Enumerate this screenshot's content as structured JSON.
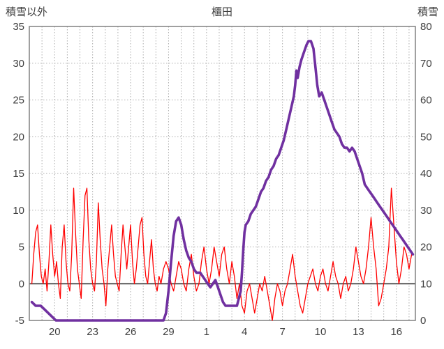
{
  "chart_data": {
    "type": "line",
    "title": "櫃田",
    "legend": "none",
    "grid": "dotted",
    "colors": {
      "red_series": "#ff0000",
      "purple_series": "#7030a0",
      "grid": "#ababab",
      "axis_text": "#404040",
      "zero_line": "#595959",
      "frame": "#808080",
      "background": "#ffffff"
    },
    "x_axis": {
      "min": 0,
      "max": 30.5,
      "ticks": [
        {
          "x": 2,
          "label": "20"
        },
        {
          "x": 5,
          "label": "23"
        },
        {
          "x": 8,
          "label": "26"
        },
        {
          "x": 11,
          "label": "29"
        },
        {
          "x": 14,
          "label": "1"
        },
        {
          "x": 17,
          "label": "4"
        },
        {
          "x": 20,
          "label": "7"
        },
        {
          "x": 23,
          "label": "10"
        },
        {
          "x": 26,
          "label": "13"
        },
        {
          "x": 29,
          "label": "16"
        }
      ]
    },
    "left_axis": {
      "title": "積雪以外",
      "min": -5,
      "max": 35,
      "ticks": [
        35,
        30,
        25,
        20,
        15,
        10,
        5,
        0,
        -5
      ]
    },
    "right_axis": {
      "title": "積雪",
      "min": 0,
      "max": 80,
      "ticks": [
        80,
        70,
        60,
        50,
        40,
        30,
        20,
        10,
        0
      ]
    },
    "series": [
      {
        "name": "積雪以外",
        "axis": "left",
        "color": "#ff0000",
        "width": 1.3,
        "points": [
          [
            0.2,
            0
          ],
          [
            0.35,
            4
          ],
          [
            0.5,
            7
          ],
          [
            0.65,
            8
          ],
          [
            0.8,
            4
          ],
          [
            0.95,
            1
          ],
          [
            1.1,
            0
          ],
          [
            1.25,
            2
          ],
          [
            1.4,
            -1
          ],
          [
            1.55,
            3
          ],
          [
            1.7,
            8
          ],
          [
            1.85,
            4
          ],
          [
            2.0,
            1
          ],
          [
            2.15,
            3
          ],
          [
            2.3,
            0
          ],
          [
            2.45,
            -2
          ],
          [
            2.6,
            5
          ],
          [
            2.75,
            8
          ],
          [
            2.9,
            3
          ],
          [
            3.05,
            0
          ],
          [
            3.2,
            -1
          ],
          [
            3.35,
            4
          ],
          [
            3.5,
            13
          ],
          [
            3.65,
            7
          ],
          [
            3.8,
            2
          ],
          [
            3.95,
            0
          ],
          [
            4.1,
            -2
          ],
          [
            4.25,
            6
          ],
          [
            4.4,
            12
          ],
          [
            4.55,
            13
          ],
          [
            4.7,
            6
          ],
          [
            4.85,
            2
          ],
          [
            5.0,
            0
          ],
          [
            5.15,
            -1
          ],
          [
            5.3,
            3
          ],
          [
            5.45,
            11
          ],
          [
            5.6,
            6
          ],
          [
            5.75,
            2
          ],
          [
            5.9,
            0
          ],
          [
            6.05,
            -3
          ],
          [
            6.2,
            2
          ],
          [
            6.35,
            5
          ],
          [
            6.5,
            8
          ],
          [
            6.65,
            4
          ],
          [
            6.8,
            1
          ],
          [
            6.95,
            0
          ],
          [
            7.1,
            -1
          ],
          [
            7.25,
            4
          ],
          [
            7.4,
            8
          ],
          [
            7.55,
            5
          ],
          [
            7.7,
            2
          ],
          [
            7.85,
            5
          ],
          [
            8.0,
            8
          ],
          [
            8.15,
            3
          ],
          [
            8.3,
            0
          ],
          [
            8.45,
            2
          ],
          [
            8.6,
            5
          ],
          [
            8.75,
            8
          ],
          [
            8.9,
            9
          ],
          [
            9.05,
            4
          ],
          [
            9.2,
            1
          ],
          [
            9.35,
            0
          ],
          [
            9.5,
            3
          ],
          [
            9.65,
            6
          ],
          [
            9.8,
            2
          ],
          [
            9.95,
            0
          ],
          [
            10.1,
            -1
          ],
          [
            10.25,
            1
          ],
          [
            10.4,
            0
          ],
          [
            10.6,
            2
          ],
          [
            10.8,
            3
          ],
          [
            11.0,
            2
          ],
          [
            11.2,
            0
          ],
          [
            11.4,
            -1
          ],
          [
            11.6,
            1
          ],
          [
            11.8,
            3
          ],
          [
            12.0,
            2
          ],
          [
            12.2,
            0
          ],
          [
            12.4,
            -1
          ],
          [
            12.6,
            2
          ],
          [
            12.8,
            4
          ],
          [
            13.0,
            1
          ],
          [
            13.2,
            -1
          ],
          [
            13.4,
            0
          ],
          [
            13.6,
            3
          ],
          [
            13.8,
            5
          ],
          [
            14.0,
            2
          ],
          [
            14.2,
            0
          ],
          [
            14.4,
            2
          ],
          [
            14.6,
            5
          ],
          [
            14.8,
            3
          ],
          [
            15.0,
            1
          ],
          [
            15.2,
            4
          ],
          [
            15.4,
            5
          ],
          [
            15.6,
            2
          ],
          [
            15.8,
            0
          ],
          [
            16.0,
            3
          ],
          [
            16.2,
            1
          ],
          [
            16.4,
            -2
          ],
          [
            16.6,
            0
          ],
          [
            16.8,
            -3
          ],
          [
            17.0,
            -4
          ],
          [
            17.2,
            -1
          ],
          [
            17.4,
            0
          ],
          [
            17.6,
            -2
          ],
          [
            17.8,
            -4
          ],
          [
            18.0,
            -2
          ],
          [
            18.2,
            0
          ],
          [
            18.4,
            -1
          ],
          [
            18.6,
            1
          ],
          [
            18.8,
            -1
          ],
          [
            19.0,
            -3
          ],
          [
            19.2,
            -5
          ],
          [
            19.4,
            -2
          ],
          [
            19.6,
            0
          ],
          [
            19.8,
            -1
          ],
          [
            20.0,
            -3
          ],
          [
            20.2,
            -1
          ],
          [
            20.4,
            0
          ],
          [
            20.6,
            2
          ],
          [
            20.8,
            4
          ],
          [
            21.0,
            1
          ],
          [
            21.2,
            -1
          ],
          [
            21.4,
            -3
          ],
          [
            21.6,
            -4
          ],
          [
            21.8,
            -2
          ],
          [
            22.0,
            0
          ],
          [
            22.2,
            1
          ],
          [
            22.4,
            2
          ],
          [
            22.6,
            0
          ],
          [
            22.8,
            -1
          ],
          [
            23.0,
            1
          ],
          [
            23.2,
            2
          ],
          [
            23.4,
            0
          ],
          [
            23.6,
            -1
          ],
          [
            23.8,
            1
          ],
          [
            24.0,
            3
          ],
          [
            24.2,
            1
          ],
          [
            24.4,
            0
          ],
          [
            24.6,
            -2
          ],
          [
            24.8,
            0
          ],
          [
            25.0,
            1
          ],
          [
            25.2,
            -1
          ],
          [
            25.4,
            0
          ],
          [
            25.6,
            2
          ],
          [
            25.8,
            5
          ],
          [
            26.0,
            3
          ],
          [
            26.2,
            1
          ],
          [
            26.4,
            0
          ],
          [
            26.6,
            2
          ],
          [
            26.8,
            5
          ],
          [
            27.0,
            9
          ],
          [
            27.2,
            5
          ],
          [
            27.4,
            2
          ],
          [
            27.6,
            -3
          ],
          [
            27.8,
            -2
          ],
          [
            28.0,
            0
          ],
          [
            28.2,
            2
          ],
          [
            28.4,
            5
          ],
          [
            28.6,
            13
          ],
          [
            28.8,
            8
          ],
          [
            29.0,
            3
          ],
          [
            29.2,
            0
          ],
          [
            29.4,
            2
          ],
          [
            29.6,
            5
          ],
          [
            29.8,
            4
          ],
          [
            30.0,
            2
          ],
          [
            30.2,
            4
          ]
        ]
      },
      {
        "name": "積雪",
        "axis": "right",
        "color": "#7030a0",
        "width": 3.6,
        "points": [
          [
            0.2,
            5
          ],
          [
            0.5,
            4
          ],
          [
            0.9,
            4
          ],
          [
            1.2,
            3
          ],
          [
            1.5,
            2
          ],
          [
            1.8,
            1
          ],
          [
            2.1,
            0
          ],
          [
            3,
            0
          ],
          [
            4,
            0
          ],
          [
            5,
            0
          ],
          [
            6,
            0
          ],
          [
            7,
            0
          ],
          [
            8,
            0
          ],
          [
            9,
            0
          ],
          [
            10,
            0
          ],
          [
            10.6,
            0
          ],
          [
            10.8,
            2
          ],
          [
            11.0,
            8
          ],
          [
            11.2,
            16
          ],
          [
            11.4,
            23
          ],
          [
            11.6,
            27
          ],
          [
            11.8,
            28
          ],
          [
            12.0,
            26
          ],
          [
            12.2,
            22
          ],
          [
            12.4,
            19
          ],
          [
            12.6,
            17
          ],
          [
            12.8,
            16
          ],
          [
            13.0,
            14
          ],
          [
            13.2,
            13
          ],
          [
            13.5,
            13
          ],
          [
            13.7,
            12
          ],
          [
            13.9,
            11
          ],
          [
            14.1,
            10
          ],
          [
            14.3,
            9
          ],
          [
            14.5,
            10
          ],
          [
            14.7,
            11
          ],
          [
            14.9,
            9
          ],
          [
            15.1,
            7
          ],
          [
            15.3,
            5
          ],
          [
            15.5,
            4
          ],
          [
            15.8,
            4
          ],
          [
            16.1,
            4
          ],
          [
            16.4,
            4
          ],
          [
            16.55,
            6
          ],
          [
            16.7,
            8
          ],
          [
            16.8,
            13
          ],
          [
            16.9,
            19
          ],
          [
            17.0,
            24
          ],
          [
            17.1,
            26
          ],
          [
            17.3,
            27
          ],
          [
            17.5,
            29
          ],
          [
            17.7,
            30
          ],
          [
            17.9,
            31
          ],
          [
            18.1,
            33
          ],
          [
            18.3,
            35
          ],
          [
            18.5,
            36
          ],
          [
            18.7,
            38
          ],
          [
            18.9,
            39
          ],
          [
            19.1,
            41
          ],
          [
            19.3,
            42
          ],
          [
            19.5,
            44
          ],
          [
            19.7,
            45
          ],
          [
            19.9,
            47
          ],
          [
            20.1,
            49
          ],
          [
            20.3,
            52
          ],
          [
            20.5,
            55
          ],
          [
            20.7,
            58
          ],
          [
            20.9,
            61
          ],
          [
            21.0,
            64
          ],
          [
            21.1,
            68
          ],
          [
            21.2,
            66
          ],
          [
            21.35,
            69
          ],
          [
            21.5,
            71
          ],
          [
            21.7,
            73
          ],
          [
            21.9,
            75
          ],
          [
            22.05,
            76
          ],
          [
            22.25,
            76
          ],
          [
            22.45,
            74
          ],
          [
            22.6,
            69
          ],
          [
            22.75,
            64
          ],
          [
            22.9,
            61
          ],
          [
            23.1,
            62
          ],
          [
            23.3,
            60
          ],
          [
            23.5,
            58
          ],
          [
            23.7,
            56
          ],
          [
            23.9,
            54
          ],
          [
            24.1,
            52
          ],
          [
            24.3,
            51
          ],
          [
            24.5,
            50
          ],
          [
            24.7,
            48
          ],
          [
            24.9,
            47
          ],
          [
            25.1,
            47
          ],
          [
            25.3,
            46
          ],
          [
            25.5,
            47
          ],
          [
            25.7,
            46
          ],
          [
            25.9,
            44
          ],
          [
            26.1,
            42
          ],
          [
            26.3,
            40
          ],
          [
            26.5,
            37
          ],
          [
            26.7,
            36
          ],
          [
            26.9,
            35
          ],
          [
            27.1,
            34
          ],
          [
            27.3,
            33
          ],
          [
            27.5,
            32
          ],
          [
            27.7,
            31
          ],
          [
            27.9,
            30
          ],
          [
            28.1,
            29
          ],
          [
            28.3,
            28
          ],
          [
            28.5,
            27
          ],
          [
            28.7,
            26
          ],
          [
            28.9,
            25
          ],
          [
            29.1,
            24
          ],
          [
            29.3,
            23
          ],
          [
            29.5,
            22
          ],
          [
            29.7,
            21
          ],
          [
            29.9,
            20
          ],
          [
            30.1,
            19
          ],
          [
            30.3,
            18
          ]
        ]
      }
    ]
  }
}
